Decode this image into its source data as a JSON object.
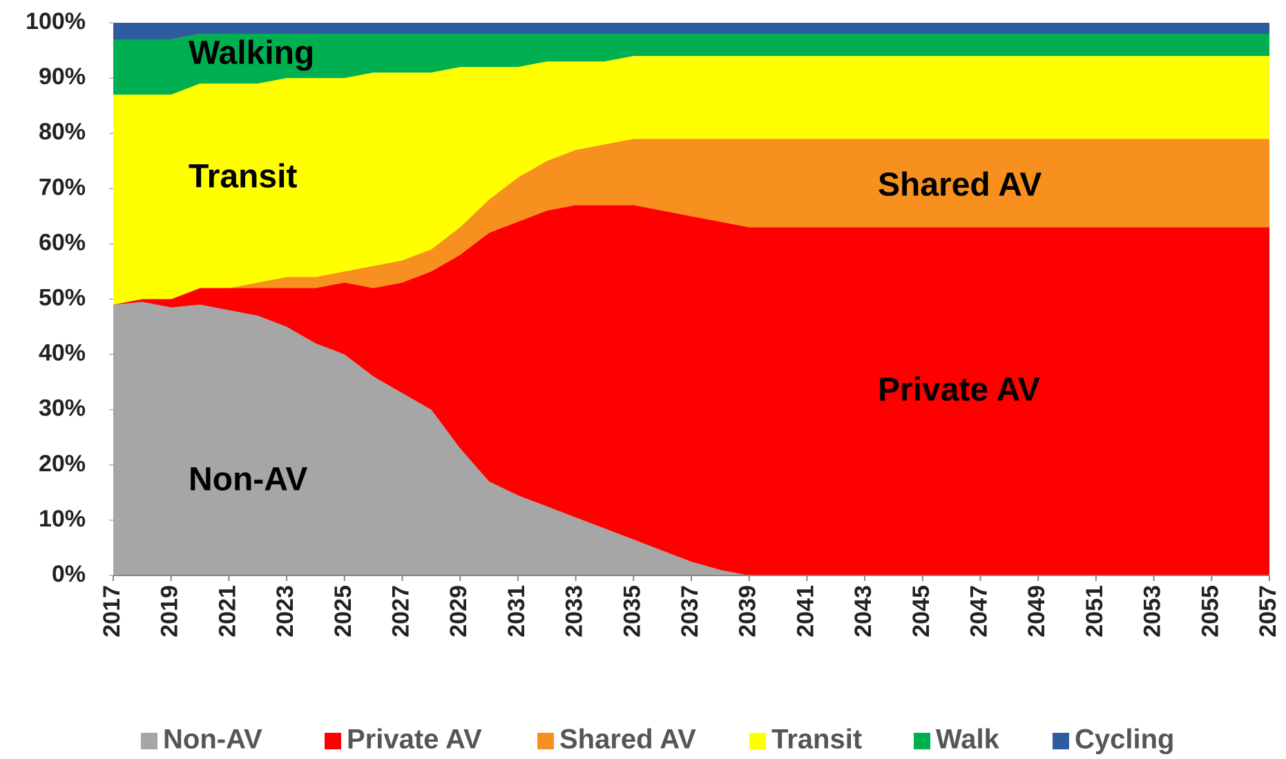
{
  "chart_data": {
    "type": "stacked_area",
    "x": [
      2017,
      2018,
      2019,
      2020,
      2021,
      2022,
      2023,
      2024,
      2025,
      2026,
      2027,
      2028,
      2029,
      2030,
      2031,
      2032,
      2033,
      2034,
      2035,
      2036,
      2037,
      2038,
      2039,
      2040,
      2041,
      2042,
      2043,
      2044,
      2045,
      2046,
      2047,
      2048,
      2049,
      2050,
      2051,
      2052,
      2053,
      2054,
      2055,
      2056,
      2057
    ],
    "xlim": [
      2017,
      2057
    ],
    "xticks": [
      2017,
      2019,
      2021,
      2023,
      2025,
      2027,
      2029,
      2031,
      2033,
      2035,
      2037,
      2039,
      2041,
      2043,
      2045,
      2047,
      2049,
      2051,
      2053,
      2055,
      2057
    ],
    "ylim": [
      0,
      100
    ],
    "yticks": [
      {
        "value": 0,
        "label": "0%"
      },
      {
        "value": 10,
        "label": "10%"
      },
      {
        "value": 20,
        "label": "20%"
      },
      {
        "value": 30,
        "label": "30%"
      },
      {
        "value": 40,
        "label": "40%"
      },
      {
        "value": 50,
        "label": "50%"
      },
      {
        "value": 60,
        "label": "60%"
      },
      {
        "value": 70,
        "label": "70%"
      },
      {
        "value": 80,
        "label": "80%"
      },
      {
        "value": 90,
        "label": "90%"
      },
      {
        "value": 100,
        "label": "100%"
      }
    ],
    "legend": "bottom",
    "series": [
      {
        "name": "Non-AV",
        "color": "#a6a6a6",
        "values": [
          49,
          49.5,
          48.5,
          49,
          48,
          47,
          45,
          42,
          40,
          36,
          33,
          30,
          23,
          17,
          14.5,
          12.5,
          10.5,
          8.5,
          6.5,
          4.5,
          2.5,
          1,
          0,
          0,
          0,
          0,
          0,
          0,
          0,
          0,
          0,
          0,
          0,
          0,
          0,
          0,
          0,
          0,
          0,
          0,
          0
        ]
      },
      {
        "name": "Private AV",
        "color": "#ff0000",
        "values": [
          0,
          0.5,
          1.5,
          3,
          4,
          5,
          7,
          10,
          13,
          16,
          20,
          25,
          35,
          45,
          49.5,
          53.5,
          56.5,
          58.5,
          60.5,
          61.5,
          62.5,
          63,
          63,
          63,
          63,
          63,
          63,
          63,
          63,
          63,
          63,
          63,
          63,
          63,
          63,
          63,
          63,
          63,
          63,
          63,
          63
        ]
      },
      {
        "name": "Shared AV",
        "color": "#f7901e",
        "values": [
          0,
          0,
          0,
          0,
          0,
          1,
          2,
          2,
          2,
          4,
          4,
          4,
          5,
          6,
          8,
          9,
          10,
          11,
          12,
          13,
          14,
          15,
          16,
          16,
          16,
          16,
          16,
          16,
          16,
          16,
          16,
          16,
          16,
          16,
          16,
          16,
          16,
          16,
          16,
          16,
          16
        ]
      },
      {
        "name": "Transit",
        "color": "#ffff00",
        "values": [
          38,
          37,
          37,
          37,
          37,
          36,
          36,
          36,
          35,
          35,
          34,
          32,
          29,
          24,
          20,
          18,
          16,
          15,
          15,
          15,
          15,
          15,
          15,
          15,
          15,
          15,
          15,
          15,
          15,
          15,
          15,
          15,
          15,
          15,
          15,
          15,
          15,
          15,
          15,
          15,
          15
        ]
      },
      {
        "name": "Walk",
        "color": "#00b050",
        "values": [
          10,
          10,
          10,
          9,
          9,
          9,
          8,
          8,
          8,
          7,
          7,
          7,
          6,
          6,
          6,
          5,
          5,
          5,
          4,
          4,
          4,
          4,
          4,
          4,
          4,
          4,
          4,
          4,
          4,
          4,
          4,
          4,
          4,
          4,
          4,
          4,
          4,
          4,
          4,
          4,
          4
        ]
      },
      {
        "name": "Cycling",
        "color": "#2e5c9e",
        "values": [
          3,
          3,
          3,
          2,
          2,
          2,
          2,
          2,
          2,
          2,
          2,
          2,
          2,
          2,
          2,
          2,
          2,
          2,
          2,
          2,
          2,
          2,
          2,
          2,
          2,
          2,
          2,
          2,
          2,
          2,
          2,
          2,
          2,
          2,
          2,
          2,
          2,
          2,
          2,
          2,
          2
        ]
      }
    ],
    "annotations": [
      "Walking",
      "Transit",
      "Shared AV",
      "Private AV",
      "Non-AV"
    ]
  }
}
